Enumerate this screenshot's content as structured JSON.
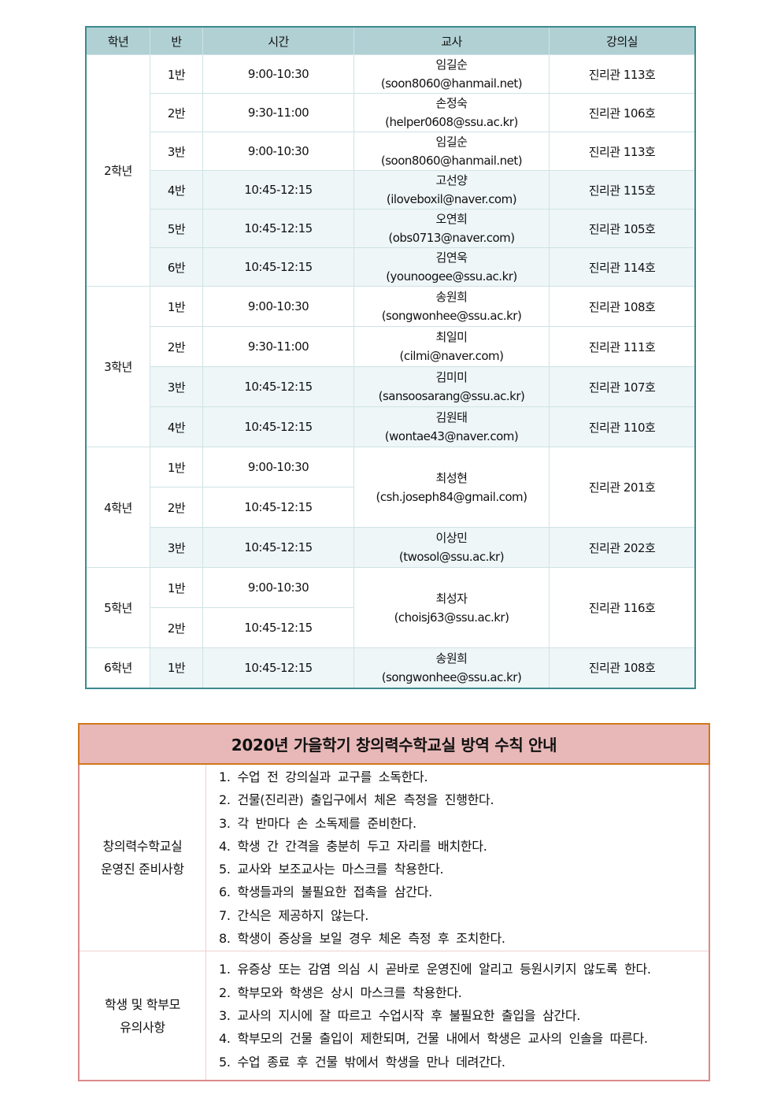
{
  "schedule": {
    "headers": [
      "학년",
      "반",
      "시간",
      "교사",
      "강의실"
    ],
    "grades": [
      {
        "grade": "2학년",
        "rows": [
          {
            "class": "1반",
            "time": "9:00-10:30",
            "teacher": "임길순",
            "email": "(soon8060@hanmail.net)",
            "room": "진리관 113호",
            "shaded": false
          },
          {
            "class": "2반",
            "time": "9:30-11:00",
            "teacher": "손정숙",
            "email": "(helper0608@ssu.ac.kr)",
            "room": "진리관 106호",
            "shaded": false
          },
          {
            "class": "3반",
            "time": "9:00-10:30",
            "teacher": "임길순",
            "email": "(soon8060@hanmail.net)",
            "room": "진리관 113호",
            "shaded": false
          },
          {
            "class": "4반",
            "time": "10:45-12:15",
            "teacher": "고선양",
            "email": "(iloveboxil@naver.com)",
            "room": "진리관 115호",
            "shaded": true
          },
          {
            "class": "5반",
            "time": "10:45-12:15",
            "teacher": "오연희",
            "email": "(obs0713@naver.com)",
            "room": "진리관 105호",
            "shaded": true
          },
          {
            "class": "6반",
            "time": "10:45-12:15",
            "teacher": "김연욱",
            "email": "(younoogee@ssu.ac.kr)",
            "room": "진리관 114호",
            "shaded": true
          }
        ]
      },
      {
        "grade": "3학년",
        "rows": [
          {
            "class": "1반",
            "time": "9:00-10:30",
            "teacher": "송원희",
            "email": "(songwonhee@ssu.ac.kr)",
            "room": "진리관 108호",
            "shaded": false
          },
          {
            "class": "2반",
            "time": "9:30-11:00",
            "teacher": "최일미",
            "email": "(cilmi@naver.com)",
            "room": "진리관 111호",
            "shaded": false
          },
          {
            "class": "3반",
            "time": "10:45-12:15",
            "teacher": "김미미",
            "email": "(sansoosarang@ssu.ac.kr)",
            "room": "진리관 107호",
            "shaded": true
          },
          {
            "class": "4반",
            "time": "10:45-12:15",
            "teacher": "김원태",
            "email": "(wontae43@naver.com)",
            "room": "진리관 110호",
            "shaded": true
          }
        ]
      },
      {
        "grade": "4학년",
        "rows": [
          {
            "class": "1반",
            "time": "9:00-10:30",
            "teacher": "최성현",
            "email": "(csh.joseph84@gmail.com)",
            "room": "진리관 201호",
            "shaded": false
          },
          {
            "class": "2반",
            "time": "10:45-12:15",
            "teacher": null,
            "email": null,
            "room": null,
            "shaded": false
          },
          {
            "class": "3반",
            "time": "10:45-12:15",
            "teacher": "이상민",
            "email": "(twosol@ssu.ac.kr)",
            "room": "진리관 202호",
            "shaded": true
          }
        ]
      },
      {
        "grade": "5학년",
        "rows": [
          {
            "class": "1반",
            "time": "9:00-10:30",
            "teacher": "최성자",
            "email": "(choisj63@ssu.ac.kr)",
            "room": "진리관 116호",
            "shaded": false
          },
          {
            "class": "2반",
            "time": "10:45-12:15",
            "teacher": null,
            "email": null,
            "room": null,
            "shaded": false
          }
        ]
      },
      {
        "grade": "6학년",
        "rows": [
          {
            "class": "1반",
            "time": "10:45-12:15",
            "teacher": "송원희",
            "email": "(songwonhee@ssu.ac.kr)",
            "room": "진리관 108호",
            "shaded": true
          }
        ]
      }
    ]
  },
  "rules": {
    "title": "2020년 가을학기 창의력수학교실 방역 수칙 안내",
    "sections": [
      {
        "label": [
          "창의력수학교실",
          "운영진 준비사항"
        ],
        "items": [
          "1. 수업 전 강의실과 교구를 소독한다.",
          "2. 건물(진리관) 출입구에서 체온 측정을 진행한다.",
          "3. 각 반마다 손 소독제를 준비한다.",
          "4. 학생 간 간격을 충분히 두고 자리를 배치한다.",
          "5. 교사와 보조교사는 마스크를 착용한다.",
          "6. 학생들과의 불필요한 접촉을 삼간다.",
          "7. 간식은 제공하지 않는다.",
          "8. 학생이 증상을 보일 경우 체온 측정 후 조치한다."
        ]
      },
      {
        "label": [
          "학생 및 학부모",
          "유의사항"
        ],
        "items": [
          "1. 유증상 또는 감염 의심 시 곧바로 운영진에 알리고 등원시키지 않도록 한다.",
          "2. 학부모와 학생은 상시 마스크를 착용한다.",
          "3. 교사의 지시에 잘 따르고 수업시작 후 불필요한 출입을 삼간다.",
          "4. 학부모의 건물 출입이 제한되며, 건물 내에서 학생은 교사의 인솔을 따른다.",
          "5. 수업 종료 후 건물 밖에서 학생을 만나 데려간다."
        ]
      }
    ]
  }
}
